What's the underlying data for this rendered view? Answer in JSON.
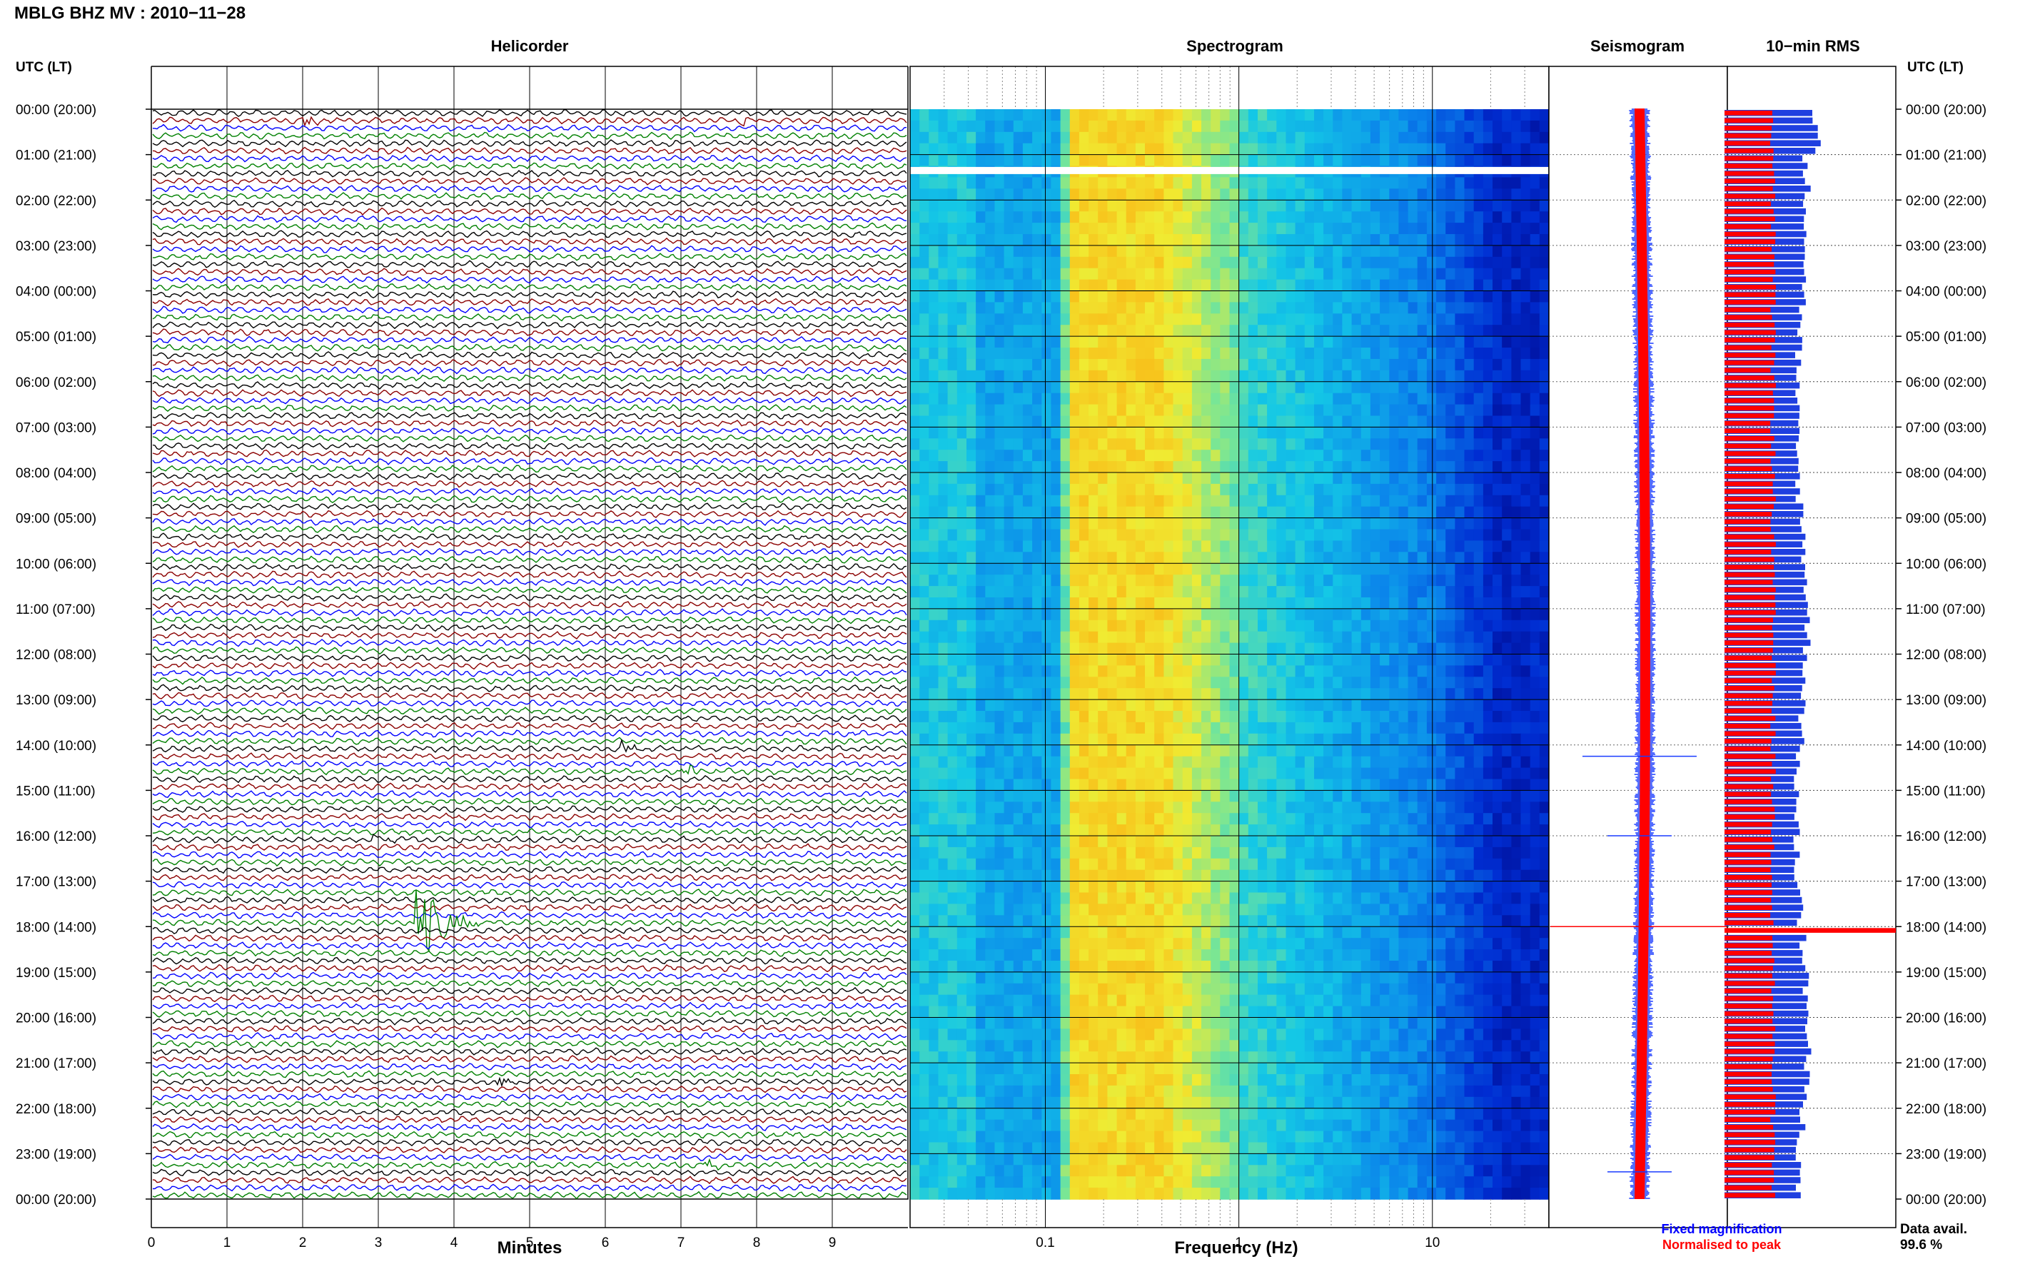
{
  "header": {
    "station_title": "MBLG BHZ MV : 2010−11−28",
    "utc_lt_label_left": "UTC (LT)",
    "utc_lt_label_right": "UTC (LT)"
  },
  "panels": {
    "helicorder": "Helicorder",
    "spectrogram": "Spectrogram",
    "seismogram": "Seismogram",
    "rms": "10−min RMS"
  },
  "axes": {
    "helicorder_xlabel": "Minutes",
    "spectrogram_xlabel": "Frequency (Hz)"
  },
  "legend": {
    "fixed": "Fixed magnification",
    "normalised": "Normalised to peak",
    "fixed_color": "#0000ff",
    "normalised_color": "#ff0000"
  },
  "data_availability": {
    "label": "Data avail.",
    "value": "99.6 %"
  },
  "colors": {
    "trace_cycle": [
      "#000000",
      "#8b0000",
      "#0000ff",
      "#008000"
    ],
    "rms_fixed": "#1f3fe0",
    "rms_normalised": "#ff0000",
    "seis_fixed": "#1a3cff",
    "seis_norm": "#ff0000"
  },
  "chart_data": [
    {
      "type": "line",
      "panel": "Helicorder",
      "xlabel": "Minutes",
      "x_ticks": [
        "0",
        "1",
        "2",
        "3",
        "4",
        "5",
        "6",
        "7",
        "8",
        "9"
      ],
      "xlim": [
        0,
        10
      ],
      "rows_per_hour": 6,
      "hours": 24,
      "y_tick_labels": [
        "00:00 (20:00)",
        "01:00 (21:00)",
        "02:00 (22:00)",
        "03:00 (23:00)",
        "04:00 (00:00)",
        "05:00 (01:00)",
        "06:00 (02:00)",
        "07:00 (03:00)",
        "08:00 (04:00)",
        "09:00 (05:00)",
        "10:00 (06:00)",
        "11:00 (07:00)",
        "12:00 (08:00)",
        "13:00 (09:00)",
        "14:00 (10:00)",
        "15:00 (11:00)",
        "16:00 (12:00)",
        "17:00 (13:00)",
        "18:00 (14:00)",
        "19:00 (15:00)",
        "20:00 (16:00)",
        "21:00 (17:00)",
        "22:00 (18:00)",
        "23:00 (19:00)",
        "00:00 (20:00)"
      ],
      "events": [
        {
          "time": "00:10",
          "minute": 2.0,
          "note": "small green event"
        },
        {
          "time": "00:10",
          "minute": 7.8,
          "note": "small green event"
        },
        {
          "time": "14:00",
          "minute": 6.2,
          "note": "red event"
        },
        {
          "time": "14:30",
          "minute": 7.0,
          "note": "red event"
        },
        {
          "time": "16:00",
          "minute": 2.9,
          "note": "black event"
        },
        {
          "time": "17:50",
          "minute": 3.5,
          "note": "large black event"
        },
        {
          "time": "21:20",
          "minute": 4.5,
          "note": "black event"
        },
        {
          "time": "23:10",
          "minute": 7.3,
          "note": "black event"
        }
      ]
    },
    {
      "type": "heatmap",
      "panel": "Spectrogram",
      "xlabel": "Frequency (Hz)",
      "x_scale": "log",
      "xlim": [
        0.02,
        40
      ],
      "x_tick_labels": [
        "0.1",
        "1",
        "10"
      ],
      "x_tick_values": [
        0.1,
        1,
        10
      ],
      "peak_band_hz": [
        0.13,
        0.4
      ],
      "gap_hour": 1.35
    },
    {
      "type": "line",
      "panel": "Seismogram",
      "series": [
        {
          "name": "Fixed magnification"
        },
        {
          "name": "Normalised to peak"
        }
      ],
      "spikes_hour": [
        14.25,
        16.0,
        18.0,
        23.4
      ]
    },
    {
      "type": "bar",
      "panel": "10-min RMS",
      "series": [
        {
          "name": "Fixed magnification"
        },
        {
          "name": "Normalised to peak"
        }
      ],
      "peak_hour": 18.0
    }
  ]
}
